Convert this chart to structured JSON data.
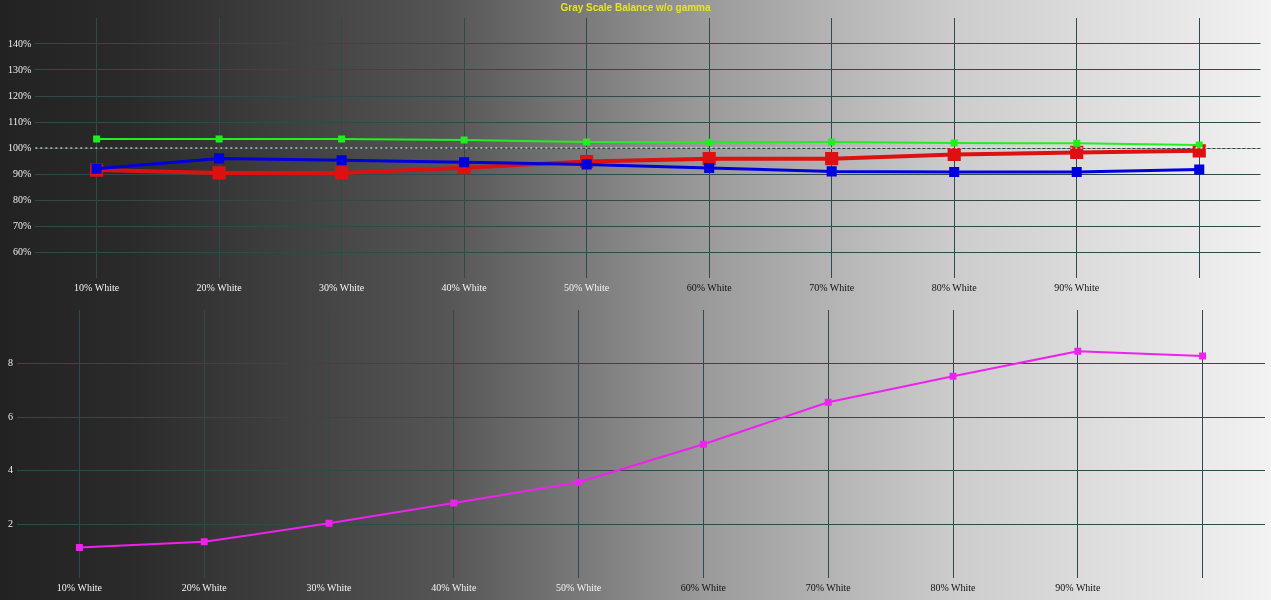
{
  "chart_data": [
    {
      "type": "line",
      "title": "Gray Scale Balance w/o gamma",
      "categories": [
        "10% White",
        "20% White",
        "30% White",
        "40% White",
        "50% White",
        "60% White",
        "70% White",
        "80% White",
        "90% White",
        null
      ],
      "series": [
        {
          "color": "#22ee22",
          "values": [
            103.5,
            103.5,
            103.5,
            103.1,
            102.3,
            102.2,
            102.3,
            101.9,
            101.8,
            101.2
          ]
        },
        {
          "color": "#0000dd",
          "values": [
            92.0,
            96.0,
            95.3,
            94.5,
            93.7,
            92.3,
            91.0,
            90.8,
            90.8,
            91.7
          ]
        },
        {
          "color": "#dd1111",
          "values": [
            91.5,
            90.4,
            90.4,
            92.4,
            94.8,
            95.9,
            95.9,
            97.5,
            98.3,
            98.9
          ]
        }
      ],
      "ylim": [
        50,
        150
      ],
      "yticks": [
        {
          "value": 60,
          "label": "60%"
        },
        {
          "value": 70,
          "label": "70%"
        },
        {
          "value": 80,
          "label": "80%"
        },
        {
          "value": 90,
          "label": "90%"
        },
        {
          "value": 100,
          "label": "100%"
        },
        {
          "value": 110,
          "label": "110%"
        },
        {
          "value": 120,
          "label": "120%"
        },
        {
          "value": 130,
          "label": "130%"
        },
        {
          "value": 140,
          "label": "140%"
        }
      ],
      "ref_lines": [
        {
          "axis": "y",
          "value": 100,
          "color": "#ffffff",
          "line_style": "dotted"
        }
      ],
      "grid": true,
      "legend": false,
      "marker": "square",
      "line_style": "solid"
    },
    {
      "type": "line",
      "categories": [
        "10% White",
        "20% White",
        "30% White",
        "40% White",
        "50% White",
        "60% White",
        "70% White",
        "80% White",
        "90% White",
        null
      ],
      "series": [
        {
          "color": "#ee22ee",
          "values": [
            1.14,
            1.35,
            2.04,
            2.8,
            3.57,
            4.99,
            6.56,
            7.53,
            8.46,
            8.28
          ]
        }
      ],
      "ylim": [
        0,
        10
      ],
      "yticks": [
        2,
        4,
        6,
        8
      ],
      "grid": true,
      "legend": false,
      "marker": "square",
      "line_style": "solid"
    }
  ]
}
